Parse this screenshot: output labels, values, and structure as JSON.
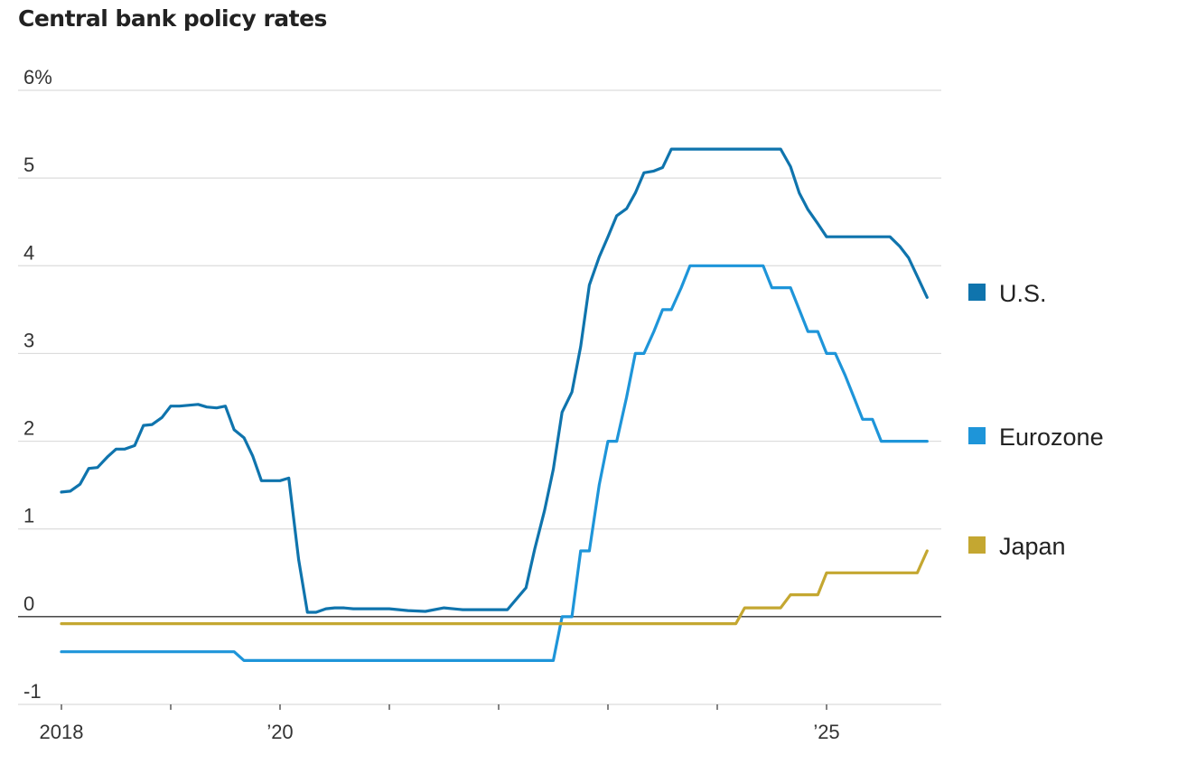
{
  "chart_data": {
    "type": "line",
    "title": "Central bank policy rates",
    "xlabel": "",
    "ylabel": "",
    "xlim": [
      2018.0,
      2026.0
    ],
    "ylim": [
      -1,
      6
    ],
    "y_ticks": [
      {
        "value": 6,
        "label": "6%"
      },
      {
        "value": 5,
        "label": "5"
      },
      {
        "value": 4,
        "label": "4"
      },
      {
        "value": 3,
        "label": "3"
      },
      {
        "value": 2,
        "label": "2"
      },
      {
        "value": 1,
        "label": "1"
      },
      {
        "value": 0,
        "label": "0"
      },
      {
        "value": -1,
        "label": "-1"
      }
    ],
    "x_tick_marks": [
      2018,
      2019,
      2020,
      2021,
      2022,
      2023,
      2024,
      2025
    ],
    "x_labels": [
      {
        "value": 2018,
        "label": "2018"
      },
      {
        "value": 2020,
        "label": "’20"
      },
      {
        "value": 2025,
        "label": "’25"
      }
    ],
    "legend_position": "right",
    "series": [
      {
        "name": "U.S.",
        "color": "#0f74ad",
        "points": [
          [
            2018.0,
            1.42
          ],
          [
            2018.08,
            1.43
          ],
          [
            2018.17,
            1.51
          ],
          [
            2018.25,
            1.69
          ],
          [
            2018.33,
            1.7
          ],
          [
            2018.42,
            1.82
          ],
          [
            2018.5,
            1.91
          ],
          [
            2018.58,
            1.91
          ],
          [
            2018.67,
            1.95
          ],
          [
            2018.75,
            2.18
          ],
          [
            2018.83,
            2.19
          ],
          [
            2018.92,
            2.27
          ],
          [
            2019.0,
            2.4
          ],
          [
            2019.08,
            2.4
          ],
          [
            2019.17,
            2.41
          ],
          [
            2019.25,
            2.42
          ],
          [
            2019.33,
            2.39
          ],
          [
            2019.42,
            2.38
          ],
          [
            2019.5,
            2.4
          ],
          [
            2019.58,
            2.13
          ],
          [
            2019.67,
            2.04
          ],
          [
            2019.75,
            1.83
          ],
          [
            2019.83,
            1.55
          ],
          [
            2019.92,
            1.55
          ],
          [
            2020.0,
            1.55
          ],
          [
            2020.08,
            1.58
          ],
          [
            2020.17,
            0.65
          ],
          [
            2020.25,
            0.05
          ],
          [
            2020.33,
            0.05
          ],
          [
            2020.42,
            0.09
          ],
          [
            2020.5,
            0.1
          ],
          [
            2020.58,
            0.1
          ],
          [
            2020.67,
            0.09
          ],
          [
            2020.83,
            0.09
          ],
          [
            2021.0,
            0.09
          ],
          [
            2021.17,
            0.07
          ],
          [
            2021.33,
            0.06
          ],
          [
            2021.5,
            0.1
          ],
          [
            2021.67,
            0.08
          ],
          [
            2022.0,
            0.08
          ],
          [
            2022.08,
            0.08
          ],
          [
            2022.25,
            0.33
          ],
          [
            2022.33,
            0.77
          ],
          [
            2022.42,
            1.21
          ],
          [
            2022.5,
            1.68
          ],
          [
            2022.58,
            2.33
          ],
          [
            2022.67,
            2.56
          ],
          [
            2022.75,
            3.08
          ],
          [
            2022.83,
            3.78
          ],
          [
            2022.92,
            4.1
          ],
          [
            2023.0,
            4.33
          ],
          [
            2023.08,
            4.57
          ],
          [
            2023.17,
            4.65
          ],
          [
            2023.25,
            4.83
          ],
          [
            2023.33,
            5.06
          ],
          [
            2023.42,
            5.08
          ],
          [
            2023.5,
            5.12
          ],
          [
            2023.58,
            5.33
          ],
          [
            2024.0,
            5.33
          ],
          [
            2024.5,
            5.33
          ],
          [
            2024.58,
            5.33
          ],
          [
            2024.67,
            5.13
          ],
          [
            2024.75,
            4.83
          ],
          [
            2024.83,
            4.64
          ],
          [
            2024.92,
            4.48
          ],
          [
            2025.0,
            4.33
          ],
          [
            2025.5,
            4.33
          ],
          [
            2025.58,
            4.33
          ],
          [
            2025.67,
            4.22
          ],
          [
            2025.75,
            4.09
          ],
          [
            2025.83,
            3.88
          ],
          [
            2025.92,
            3.64
          ]
        ]
      },
      {
        "name": "Eurozone",
        "color": "#1e95d9",
        "points": [
          [
            2018.0,
            -0.4
          ],
          [
            2019.58,
            -0.4
          ],
          [
            2019.67,
            -0.5
          ],
          [
            2022.42,
            -0.5
          ],
          [
            2022.5,
            -0.5
          ],
          [
            2022.58,
            0.0
          ],
          [
            2022.67,
            0.0
          ],
          [
            2022.75,
            0.75
          ],
          [
            2022.83,
            0.75
          ],
          [
            2022.92,
            1.5
          ],
          [
            2023.0,
            2.0
          ],
          [
            2023.08,
            2.0
          ],
          [
            2023.17,
            2.5
          ],
          [
            2023.25,
            3.0
          ],
          [
            2023.33,
            3.0
          ],
          [
            2023.42,
            3.25
          ],
          [
            2023.5,
            3.5
          ],
          [
            2023.58,
            3.5
          ],
          [
            2023.67,
            3.75
          ],
          [
            2023.75,
            4.0
          ],
          [
            2024.42,
            4.0
          ],
          [
            2024.5,
            3.75
          ],
          [
            2024.67,
            3.75
          ],
          [
            2024.75,
            3.5
          ],
          [
            2024.83,
            3.25
          ],
          [
            2024.92,
            3.25
          ],
          [
            2025.0,
            3.0
          ],
          [
            2025.08,
            3.0
          ],
          [
            2025.17,
            2.75
          ],
          [
            2025.25,
            2.5
          ],
          [
            2025.33,
            2.25
          ],
          [
            2025.42,
            2.25
          ],
          [
            2025.5,
            2.0
          ],
          [
            2025.92,
            2.0
          ]
        ]
      },
      {
        "name": "Japan",
        "color": "#c4a731",
        "points": [
          [
            2018.0,
            -0.08
          ],
          [
            2024.17,
            -0.08
          ],
          [
            2024.25,
            0.1
          ],
          [
            2024.58,
            0.1
          ],
          [
            2024.67,
            0.25
          ],
          [
            2024.92,
            0.25
          ],
          [
            2025.0,
            0.5
          ],
          [
            2025.83,
            0.5
          ],
          [
            2025.92,
            0.75
          ]
        ]
      }
    ]
  }
}
